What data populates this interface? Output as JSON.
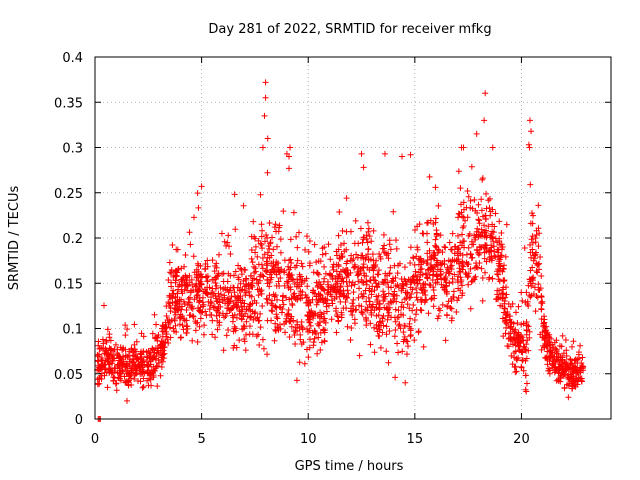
{
  "chart_data": {
    "type": "scatter",
    "title": "Day 281 of 2022, SRMTID for receiver mfkg",
    "xlabel": "GPS time / hours",
    "ylabel": "SRMTID / TECUs",
    "xlim": [
      0,
      24.2
    ],
    "ylim": [
      0,
      0.4
    ],
    "xticks": [
      0,
      5,
      10,
      15,
      20
    ],
    "xtick_labels": [
      "0",
      "5",
      "10",
      "15",
      "20"
    ],
    "yticks": [
      0,
      0.05,
      0.1,
      0.15,
      0.2,
      0.25,
      0.3,
      0.35,
      0.4
    ],
    "ytick_labels": [
      "0",
      "0.05",
      "0.1",
      "0.15",
      "0.2",
      "0.25",
      "0.3",
      "0.35",
      "0.4"
    ],
    "grid": true,
    "marker": "plus",
    "color": "#ff0000",
    "series": [
      {
        "name": "SRMTID",
        "profile_x": [
          0.1,
          0.3,
          0.5,
          1.0,
          1.5,
          2.0,
          2.5,
          3.0,
          3.3,
          3.6,
          3.8,
          4.2,
          5.0,
          6.0,
          7.0,
          7.5,
          8.0,
          8.5,
          9.0,
          9.5,
          10.0,
          10.5,
          11.0,
          12.0,
          12.5,
          13.0,
          13.5,
          14.0,
          14.5,
          15.0,
          15.5,
          16.0,
          16.5,
          17.0,
          17.5,
          18.0,
          18.5,
          19.0,
          19.3,
          19.6,
          20.0,
          20.3,
          20.5,
          20.8,
          21.0,
          21.3,
          21.6,
          22.0,
          22.5,
          22.9
        ],
        "profile_median": [
          0.06,
          0.065,
          0.065,
          0.06,
          0.058,
          0.058,
          0.06,
          0.065,
          0.09,
          0.13,
          0.14,
          0.13,
          0.14,
          0.13,
          0.12,
          0.14,
          0.16,
          0.15,
          0.14,
          0.13,
          0.12,
          0.13,
          0.14,
          0.15,
          0.16,
          0.15,
          0.13,
          0.14,
          0.12,
          0.14,
          0.16,
          0.17,
          0.15,
          0.17,
          0.19,
          0.2,
          0.2,
          0.16,
          0.11,
          0.08,
          0.08,
          0.09,
          0.19,
          0.17,
          0.1,
          0.08,
          0.06,
          0.055,
          0.05,
          0.055
        ],
        "profile_spread": [
          0.02,
          0.02,
          0.022,
          0.02,
          0.02,
          0.02,
          0.022,
          0.025,
          0.03,
          0.03,
          0.035,
          0.035,
          0.04,
          0.04,
          0.04,
          0.05,
          0.06,
          0.06,
          0.055,
          0.05,
          0.045,
          0.045,
          0.045,
          0.05,
          0.055,
          0.055,
          0.05,
          0.055,
          0.05,
          0.05,
          0.05,
          0.045,
          0.045,
          0.05,
          0.055,
          0.055,
          0.05,
          0.04,
          0.035,
          0.025,
          0.025,
          0.045,
          0.05,
          0.045,
          0.03,
          0.025,
          0.02,
          0.02,
          0.017,
          0.017
        ],
        "outliers": [
          {
            "x": 8.0,
            "y": 0.372
          },
          {
            "x": 8.0,
            "y": 0.355
          },
          {
            "x": 7.95,
            "y": 0.335
          },
          {
            "x": 18.3,
            "y": 0.36
          },
          {
            "x": 18.25,
            "y": 0.33
          },
          {
            "x": 17.9,
            "y": 0.315
          },
          {
            "x": 20.4,
            "y": 0.33
          },
          {
            "x": 20.45,
            "y": 0.318
          },
          {
            "x": 20.35,
            "y": 0.303
          },
          {
            "x": 20.38,
            "y": 0.3
          },
          {
            "x": 8.1,
            "y": 0.31
          },
          {
            "x": 5.0,
            "y": 0.257
          },
          {
            "x": 9.0,
            "y": 0.293
          },
          {
            "x": 9.1,
            "y": 0.29
          },
          {
            "x": 12.5,
            "y": 0.293
          },
          {
            "x": 13.6,
            "y": 0.293
          },
          {
            "x": 14.4,
            "y": 0.29
          },
          {
            "x": 14.8,
            "y": 0.292
          },
          {
            "x": 0.15,
            "y": 0.0
          },
          {
            "x": 0.2,
            "y": 0.0
          },
          {
            "x": 0.25,
            "y": 0.0
          },
          {
            "x": 1.5,
            "y": 0.02
          },
          {
            "x": 14.55,
            "y": 0.04
          },
          {
            "x": 20.2,
            "y": 0.048
          },
          {
            "x": 22.2,
            "y": 0.024
          }
        ]
      }
    ]
  }
}
